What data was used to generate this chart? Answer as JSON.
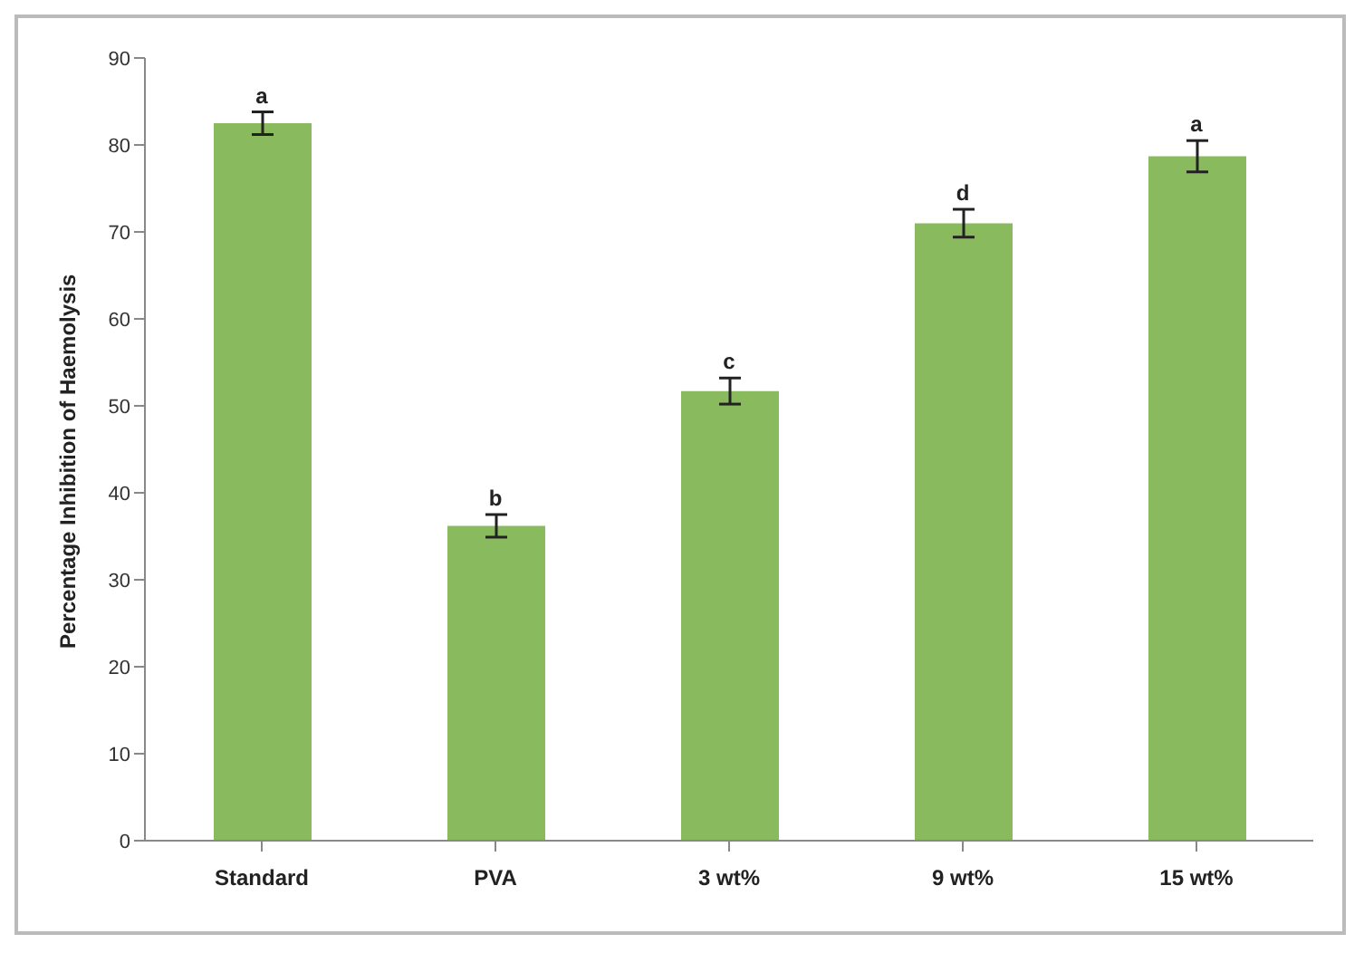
{
  "chart_data": {
    "type": "bar",
    "ylabel": "Percentage Inhibition of  Haemolysis",
    "categories": [
      "Standard",
      "PVA",
      "3 wt%",
      "9 wt%",
      "15 wt%"
    ],
    "values": [
      82.5,
      36.2,
      51.7,
      71.0,
      78.7
    ],
    "errors": [
      1.3,
      1.3,
      1.5,
      1.6,
      1.8
    ],
    "color": "#8aba5e",
    "ylim": [
      0,
      90
    ],
    "yticks": [
      0,
      10,
      20,
      30,
      40,
      50,
      60,
      70,
      80,
      90
    ],
    "annotations": [
      {
        "text": "a",
        "x": "Standard",
        "y": 83.8
      },
      {
        "text": "b",
        "x": "PVA",
        "y": 37.5
      },
      {
        "text": "c",
        "x": "3 wt%",
        "y": 53.2
      },
      {
        "text": "d",
        "x": "9 wt%",
        "y": 72.6
      },
      {
        "text": "a",
        "x": "15 wt%",
        "y": 80.5
      }
    ]
  }
}
